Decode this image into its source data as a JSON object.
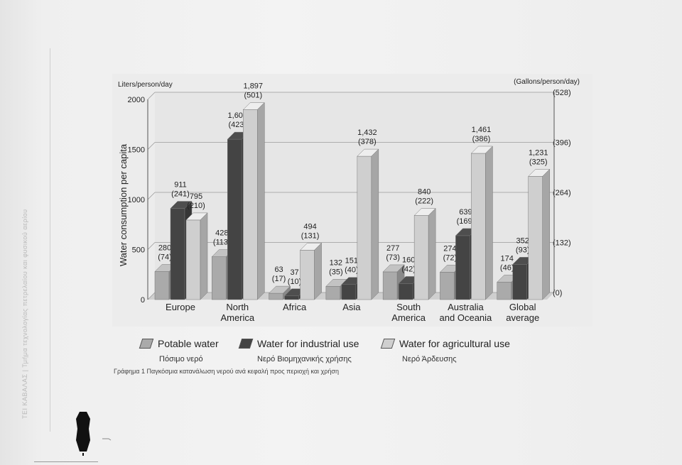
{
  "document": {
    "side_text": "ΤΕΙ ΚΑΒΑΛΑΣ | Τμήμα τεχνολογίας πετρελαίου και φυσικού αερίου",
    "caption": "Γράφημα 1 Παγκόσμια κατανάλωση νερού ανά κεφαλή προς περιοχή και χρήση"
  },
  "chart_data": {
    "type": "bar",
    "left_unit_label": "Liters/person/day",
    "right_unit_label": "(Gallons/person/day)",
    "ylabel": "Water consumption per capita",
    "ylim": [
      0,
      2000
    ],
    "y_ticks": [
      "2000",
      "1500",
      "1000",
      "500",
      "0"
    ],
    "y2_ticks": [
      "(528)",
      "(396)",
      "(264)",
      "(132)",
      "(0)"
    ],
    "grid": true,
    "legend_position": "bottom",
    "categories": [
      [
        "Europe"
      ],
      [
        "North",
        "America"
      ],
      [
        "Africa"
      ],
      [
        "Asia"
      ],
      [
        "South",
        "America"
      ],
      [
        "Australia",
        "and Oceania"
      ],
      [
        "Global",
        "average"
      ]
    ],
    "series": [
      {
        "name": "Potable water",
        "greek": "Πόσιμο νερό",
        "color": "#aaaaaa",
        "values": [
          280,
          428,
          63,
          132,
          277,
          274,
          174
        ],
        "gallons": [
          "(74)",
          "(113)",
          "(17)",
          "(35)",
          "(73)",
          "(72)",
          "(46)"
        ],
        "labels": [
          "280",
          "428",
          "63",
          "132",
          "277",
          "274",
          "174"
        ]
      },
      {
        "name": "Water for industrial use",
        "greek": "Νερό Βιομηχανικής χρήσης",
        "color": "#444444",
        "values": [
          911,
          1602,
          37,
          151,
          160,
          639,
          352
        ],
        "gallons": [
          "(241)",
          "(423)",
          "(10)",
          "(40)",
          "(42)",
          "(169)",
          "(93)"
        ],
        "labels": [
          "911",
          "1,602",
          "37",
          "151",
          "160",
          "639",
          "352"
        ]
      },
      {
        "name": "Water for agricultural use",
        "greek": "Νερό Άρδευσης",
        "color": "#cfcfcf",
        "values": [
          795,
          1897,
          494,
          1432,
          840,
          1461,
          1231
        ],
        "gallons": [
          "(210)",
          "(501)",
          "(131)",
          "(378)",
          "(222)",
          "(386)",
          "(325)"
        ],
        "labels": [
          "795",
          "1,897",
          "494",
          "1,432",
          "840",
          "1,461",
          "1,231"
        ]
      }
    ]
  }
}
